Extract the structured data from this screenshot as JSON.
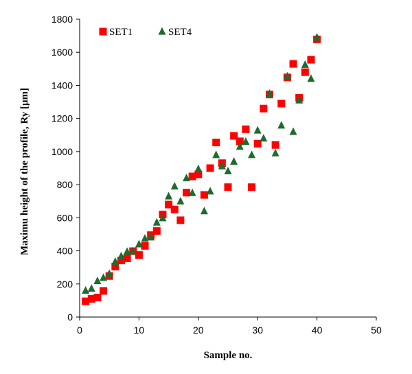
{
  "chart_data": {
    "type": "scatter",
    "title": "",
    "xlabel": "Sample no.",
    "ylabel": "Maximu height of the profile, Ry [µm]",
    "xlim": [
      0,
      50
    ],
    "ylim": [
      0,
      1800
    ],
    "xticks": [
      0,
      10,
      20,
      30,
      40,
      50
    ],
    "yticks": [
      0,
      200,
      400,
      600,
      800,
      1000,
      1200,
      1400,
      1600,
      1800
    ],
    "grid": false,
    "legend_position": "top-left",
    "series": [
      {
        "name": "SET1",
        "marker": "square",
        "color": "#ff0000",
        "points": [
          [
            1,
            95
          ],
          [
            2,
            110
          ],
          [
            3,
            118
          ],
          [
            4,
            158
          ],
          [
            5,
            248
          ],
          [
            6,
            305
          ],
          [
            7,
            342
          ],
          [
            8,
            355
          ],
          [
            9,
            398
          ],
          [
            10,
            375
          ],
          [
            11,
            430
          ],
          [
            12,
            495
          ],
          [
            13,
            520
          ],
          [
            14,
            620
          ],
          [
            15,
            680
          ],
          [
            16,
            650
          ],
          [
            17,
            585
          ],
          [
            18,
            752
          ],
          [
            19,
            850
          ],
          [
            20,
            862
          ],
          [
            21,
            738
          ],
          [
            22,
            900
          ],
          [
            23,
            1055
          ],
          [
            24,
            930
          ],
          [
            25,
            785
          ],
          [
            26,
            1095
          ],
          [
            27,
            1062
          ],
          [
            28,
            1135
          ],
          [
            29,
            785
          ],
          [
            30,
            1048
          ],
          [
            31,
            1260
          ],
          [
            32,
            1345
          ],
          [
            33,
            1040
          ],
          [
            34,
            1290
          ],
          [
            35,
            1448
          ],
          [
            36,
            1530
          ],
          [
            37,
            1325
          ],
          [
            38,
            1480
          ],
          [
            39,
            1555
          ],
          [
            40,
            1678
          ]
        ]
      },
      {
        "name": "SET4",
        "marker": "triangle",
        "color": "#1e6b2e",
        "points": [
          [
            1,
            160
          ],
          [
            2,
            172
          ],
          [
            3,
            218
          ],
          [
            4,
            238
          ],
          [
            5,
            262
          ],
          [
            6,
            335
          ],
          [
            7,
            368
          ],
          [
            8,
            395
          ],
          [
            9,
            398
          ],
          [
            10,
            440
          ],
          [
            11,
            475
          ],
          [
            12,
            482
          ],
          [
            13,
            572
          ],
          [
            14,
            598
          ],
          [
            15,
            730
          ],
          [
            16,
            790
          ],
          [
            17,
            700
          ],
          [
            18,
            840
          ],
          [
            19,
            750
          ],
          [
            20,
            895
          ],
          [
            21,
            640
          ],
          [
            22,
            760
          ],
          [
            23,
            980
          ],
          [
            24,
            912
          ],
          [
            25,
            882
          ],
          [
            26,
            940
          ],
          [
            27,
            1030
          ],
          [
            28,
            1060
          ],
          [
            29,
            980
          ],
          [
            30,
            1128
          ],
          [
            31,
            1080
          ],
          [
            32,
            1350
          ],
          [
            33,
            990
          ],
          [
            34,
            1158
          ],
          [
            35,
            1455
          ],
          [
            36,
            1120
          ],
          [
            37,
            1310
          ],
          [
            38,
            1525
          ],
          [
            39,
            1440
          ],
          [
            40,
            1690
          ]
        ]
      }
    ]
  }
}
